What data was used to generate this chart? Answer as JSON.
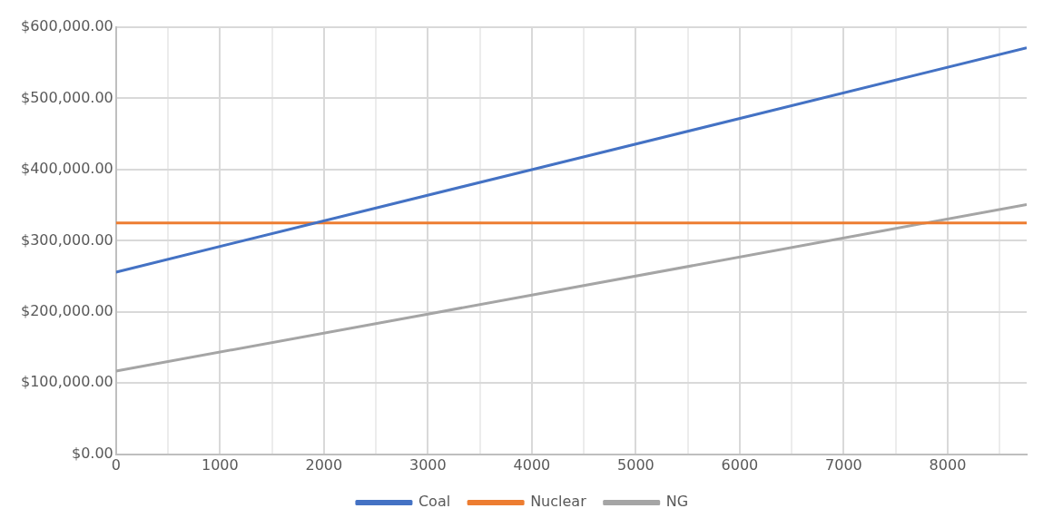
{
  "chart_data": {
    "type": "line",
    "xlim": [
      0,
      8760
    ],
    "ylim": [
      0,
      600000
    ],
    "xticks": [
      0,
      {
        "value": 500,
        "label": null
      },
      1000,
      {
        "value": 1500,
        "label": null
      },
      2000,
      {
        "value": 2500,
        "label": null
      },
      3000,
      {
        "value": 3500,
        "label": null
      },
      4000,
      {
        "value": 4500,
        "label": null
      },
      5000,
      {
        "value": 5500,
        "label": null
      },
      6000,
      {
        "value": 6500,
        "label": null
      },
      7000,
      {
        "value": 7500,
        "label": null
      },
      8000,
      {
        "value": 8500,
        "label": null
      }
    ],
    "yticks": [
      {
        "value": 0,
        "label": "$0.00"
      },
      {
        "value": 100000,
        "label": "$100,000.00"
      },
      {
        "value": 200000,
        "label": "$200,000.00"
      },
      {
        "value": 300000,
        "label": "$300,000.00"
      },
      {
        "value": 400000,
        "label": "$400,000.00"
      },
      {
        "value": 500000,
        "label": "$500,000.00"
      },
      {
        "value": 600000,
        "label": "$600,000.00"
      }
    ],
    "series": [
      {
        "name": "Coal",
        "color": "#4472c4",
        "x": [
          0,
          4000,
          8760
        ],
        "values": [
          256000,
          400000,
          571000
        ]
      },
      {
        "name": "Nuclear",
        "color": "#ed7d31",
        "x": [
          0,
          8760
        ],
        "values": [
          325000,
          325000
        ]
      },
      {
        "name": "NG",
        "color": "#a5a5a5",
        "x": [
          0,
          3000,
          8760
        ],
        "values": [
          117000,
          197000,
          351000
        ]
      }
    ],
    "grid": true,
    "legend": "bottom",
    "marker": "none",
    "line_style": "solid"
  }
}
